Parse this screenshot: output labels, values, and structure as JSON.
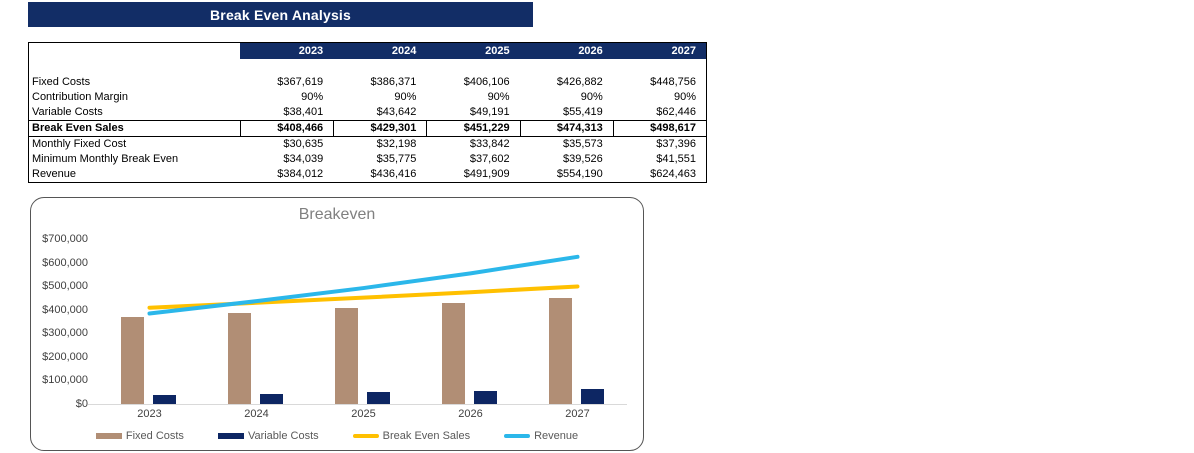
{
  "header": {
    "title": "Break Even Analysis"
  },
  "table": {
    "columns": [
      "2023",
      "2024",
      "2025",
      "2026",
      "2027"
    ],
    "rows": [
      {
        "label": "Fixed Costs",
        "values": [
          "$367,619",
          "$386,371",
          "$406,106",
          "$426,882",
          "$448,756"
        ],
        "bold": false
      },
      {
        "label": "Contribution Margin",
        "values": [
          "90%",
          "90%",
          "90%",
          "90%",
          "90%"
        ],
        "bold": false
      },
      {
        "label": "Variable Costs",
        "values": [
          "$38,401",
          "$43,642",
          "$49,191",
          "$55,419",
          "$62,446"
        ],
        "bold": false
      },
      {
        "label": "Break Even Sales",
        "values": [
          "$408,466",
          "$429,301",
          "$451,229",
          "$474,313",
          "$498,617"
        ],
        "bold": true
      },
      {
        "label": "Monthly Fixed Cost",
        "values": [
          "$30,635",
          "$32,198",
          "$33,842",
          "$35,573",
          "$37,396"
        ],
        "bold": false
      },
      {
        "label": "Minimum Monthly Break Even",
        "values": [
          "$34,039",
          "$35,775",
          "$37,602",
          "$39,526",
          "$41,551"
        ],
        "bold": false
      },
      {
        "label": "Revenue",
        "values": [
          "$384,012",
          "$436,416",
          "$491,909",
          "$554,190",
          "$624,463"
        ],
        "bold": false
      }
    ]
  },
  "chart_data": {
    "type": "combo",
    "title": "Breakeven",
    "categories": [
      "2023",
      "2024",
      "2025",
      "2026",
      "2027"
    ],
    "series": [
      {
        "name": "Fixed Costs",
        "type": "bar",
        "color": "#B18E75",
        "values": [
          367619,
          386371,
          406106,
          426882,
          448756
        ]
      },
      {
        "name": "Variable Costs",
        "type": "bar",
        "color": "#0D2663",
        "values": [
          38401,
          43642,
          49191,
          55419,
          62446
        ]
      },
      {
        "name": "Break Even Sales",
        "type": "line",
        "color": "#FFC000",
        "values": [
          408466,
          429301,
          451229,
          474313,
          498617
        ]
      },
      {
        "name": "Revenue",
        "type": "line",
        "color": "#2BB7EA",
        "values": [
          384012,
          436416,
          491909,
          554190,
          624463
        ]
      }
    ],
    "y_axis": {
      "min": 0,
      "max": 700000,
      "step": 100000,
      "tick_prefix": "$"
    },
    "xlabel": "",
    "ylabel": "",
    "grid": false,
    "legend_position": "bottom"
  },
  "colors": {
    "navy_header": "#122D66",
    "table_border": "#000000",
    "axis_text": "#404040",
    "legend_text": "#595959",
    "chart_title": "#808080",
    "axis_line": "#D9D9D9"
  }
}
